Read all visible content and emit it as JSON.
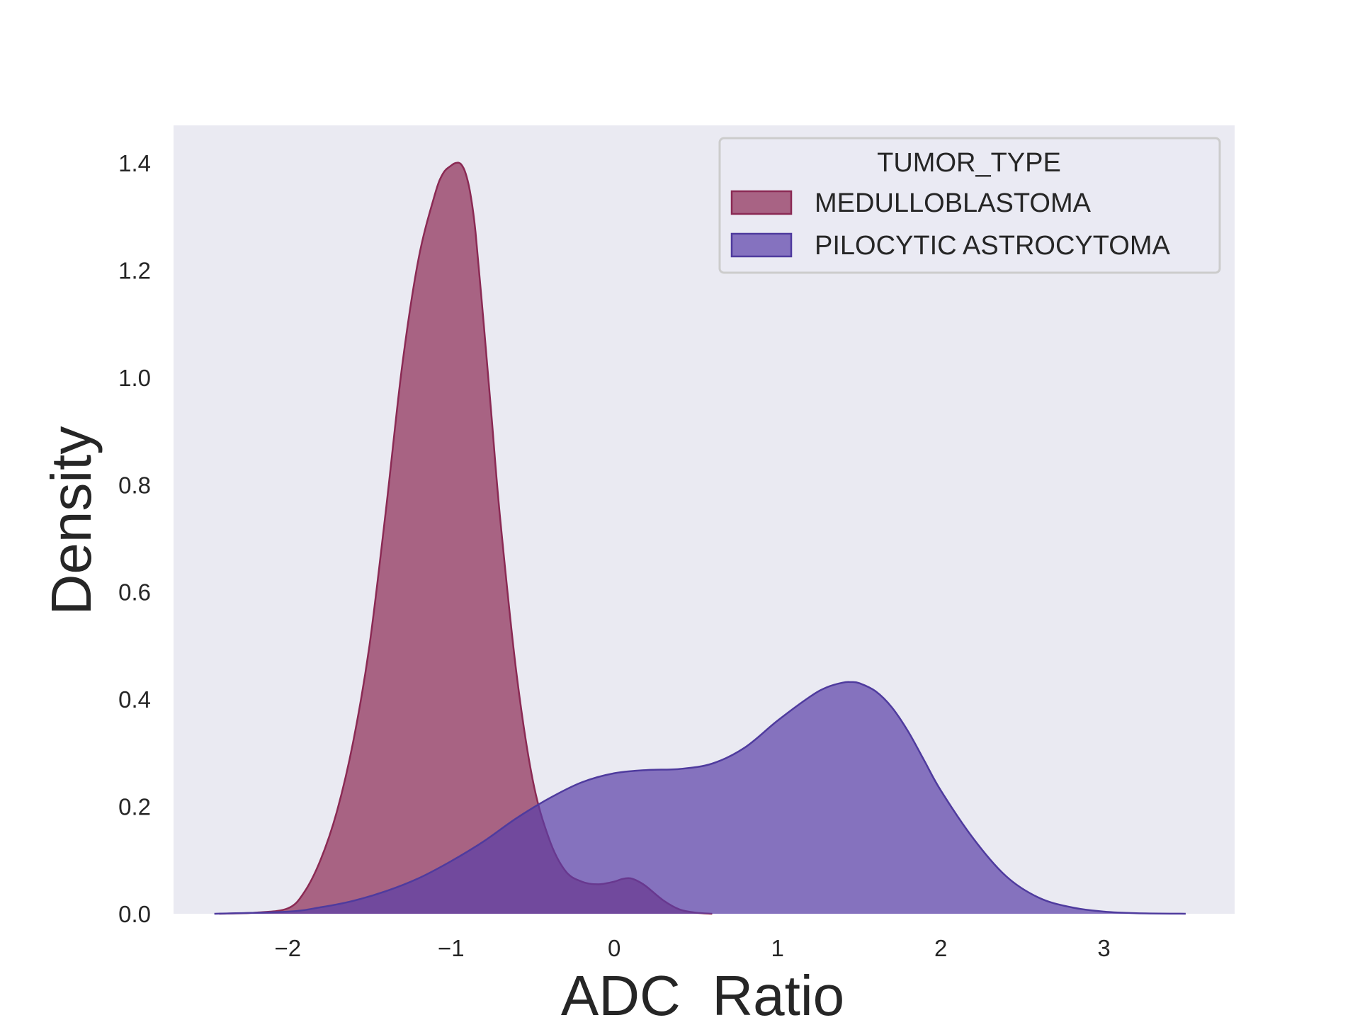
{
  "chart_data": {
    "type": "area",
    "xlabel": "ADC_Ratio",
    "ylabel": "Density",
    "xlim": [
      -2.7,
      3.8
    ],
    "ylim": [
      0,
      1.47
    ],
    "xticks": [
      -2,
      -1,
      0,
      1,
      2,
      3
    ],
    "xtick_labels": [
      "−2",
      "−1",
      "0",
      "1",
      "2",
      "3"
    ],
    "yticks": [
      0.0,
      0.2,
      0.4,
      0.6,
      0.8,
      1.0,
      1.2,
      1.4
    ],
    "ytick_labels": [
      "0.0",
      "0.2",
      "0.4",
      "0.6",
      "0.8",
      "1.0",
      "1.2",
      "1.4"
    ],
    "grid": false,
    "legend": {
      "title": "TUMOR_TYPE",
      "position": "top-right"
    },
    "series": [
      {
        "name": "MEDULLOBLASTOMA",
        "fill": "#8b2a54",
        "stroke": "#8b2a54",
        "fill_opacity": 0.7,
        "x": [
          -2.42,
          -2.2,
          -2.0,
          -1.9,
          -1.8,
          -1.7,
          -1.6,
          -1.5,
          -1.4,
          -1.3,
          -1.2,
          -1.1,
          -1.05,
          -1.0,
          -0.97,
          -0.94,
          -0.91,
          -0.88,
          -0.85,
          -0.8,
          -0.75,
          -0.7,
          -0.6,
          -0.5,
          -0.4,
          -0.3,
          -0.2,
          -0.1,
          0.0,
          0.05,
          0.1,
          0.15,
          0.2,
          0.3,
          0.4,
          0.5,
          0.6
        ],
        "y": [
          0.0,
          0.002,
          0.01,
          0.04,
          0.1,
          0.19,
          0.32,
          0.5,
          0.75,
          1.02,
          1.22,
          1.34,
          1.38,
          1.395,
          1.4,
          1.398,
          1.38,
          1.34,
          1.27,
          1.1,
          0.92,
          0.74,
          0.45,
          0.25,
          0.14,
          0.08,
          0.06,
          0.055,
          0.06,
          0.065,
          0.066,
          0.06,
          0.05,
          0.025,
          0.008,
          0.002,
          0.0
        ]
      },
      {
        "name": "PILOCYTIC ASTROCYTOMA",
        "fill": "#5a3fa8",
        "stroke": "#4f3b9e",
        "fill_opacity": 0.7,
        "x": [
          -2.45,
          -2.0,
          -1.8,
          -1.6,
          -1.4,
          -1.2,
          -1.0,
          -0.8,
          -0.6,
          -0.4,
          -0.2,
          0.0,
          0.2,
          0.4,
          0.6,
          0.8,
          1.0,
          1.2,
          1.3,
          1.4,
          1.45,
          1.5,
          1.6,
          1.7,
          1.8,
          1.9,
          2.0,
          2.2,
          2.4,
          2.6,
          2.8,
          3.0,
          3.2,
          3.5
        ],
        "y": [
          0.0,
          0.004,
          0.012,
          0.024,
          0.042,
          0.066,
          0.098,
          0.135,
          0.178,
          0.215,
          0.245,
          0.262,
          0.268,
          0.27,
          0.28,
          0.31,
          0.36,
          0.405,
          0.422,
          0.431,
          0.432,
          0.43,
          0.415,
          0.385,
          0.34,
          0.285,
          0.23,
          0.14,
          0.07,
          0.03,
          0.012,
          0.004,
          0.001,
          0.0
        ]
      }
    ]
  }
}
